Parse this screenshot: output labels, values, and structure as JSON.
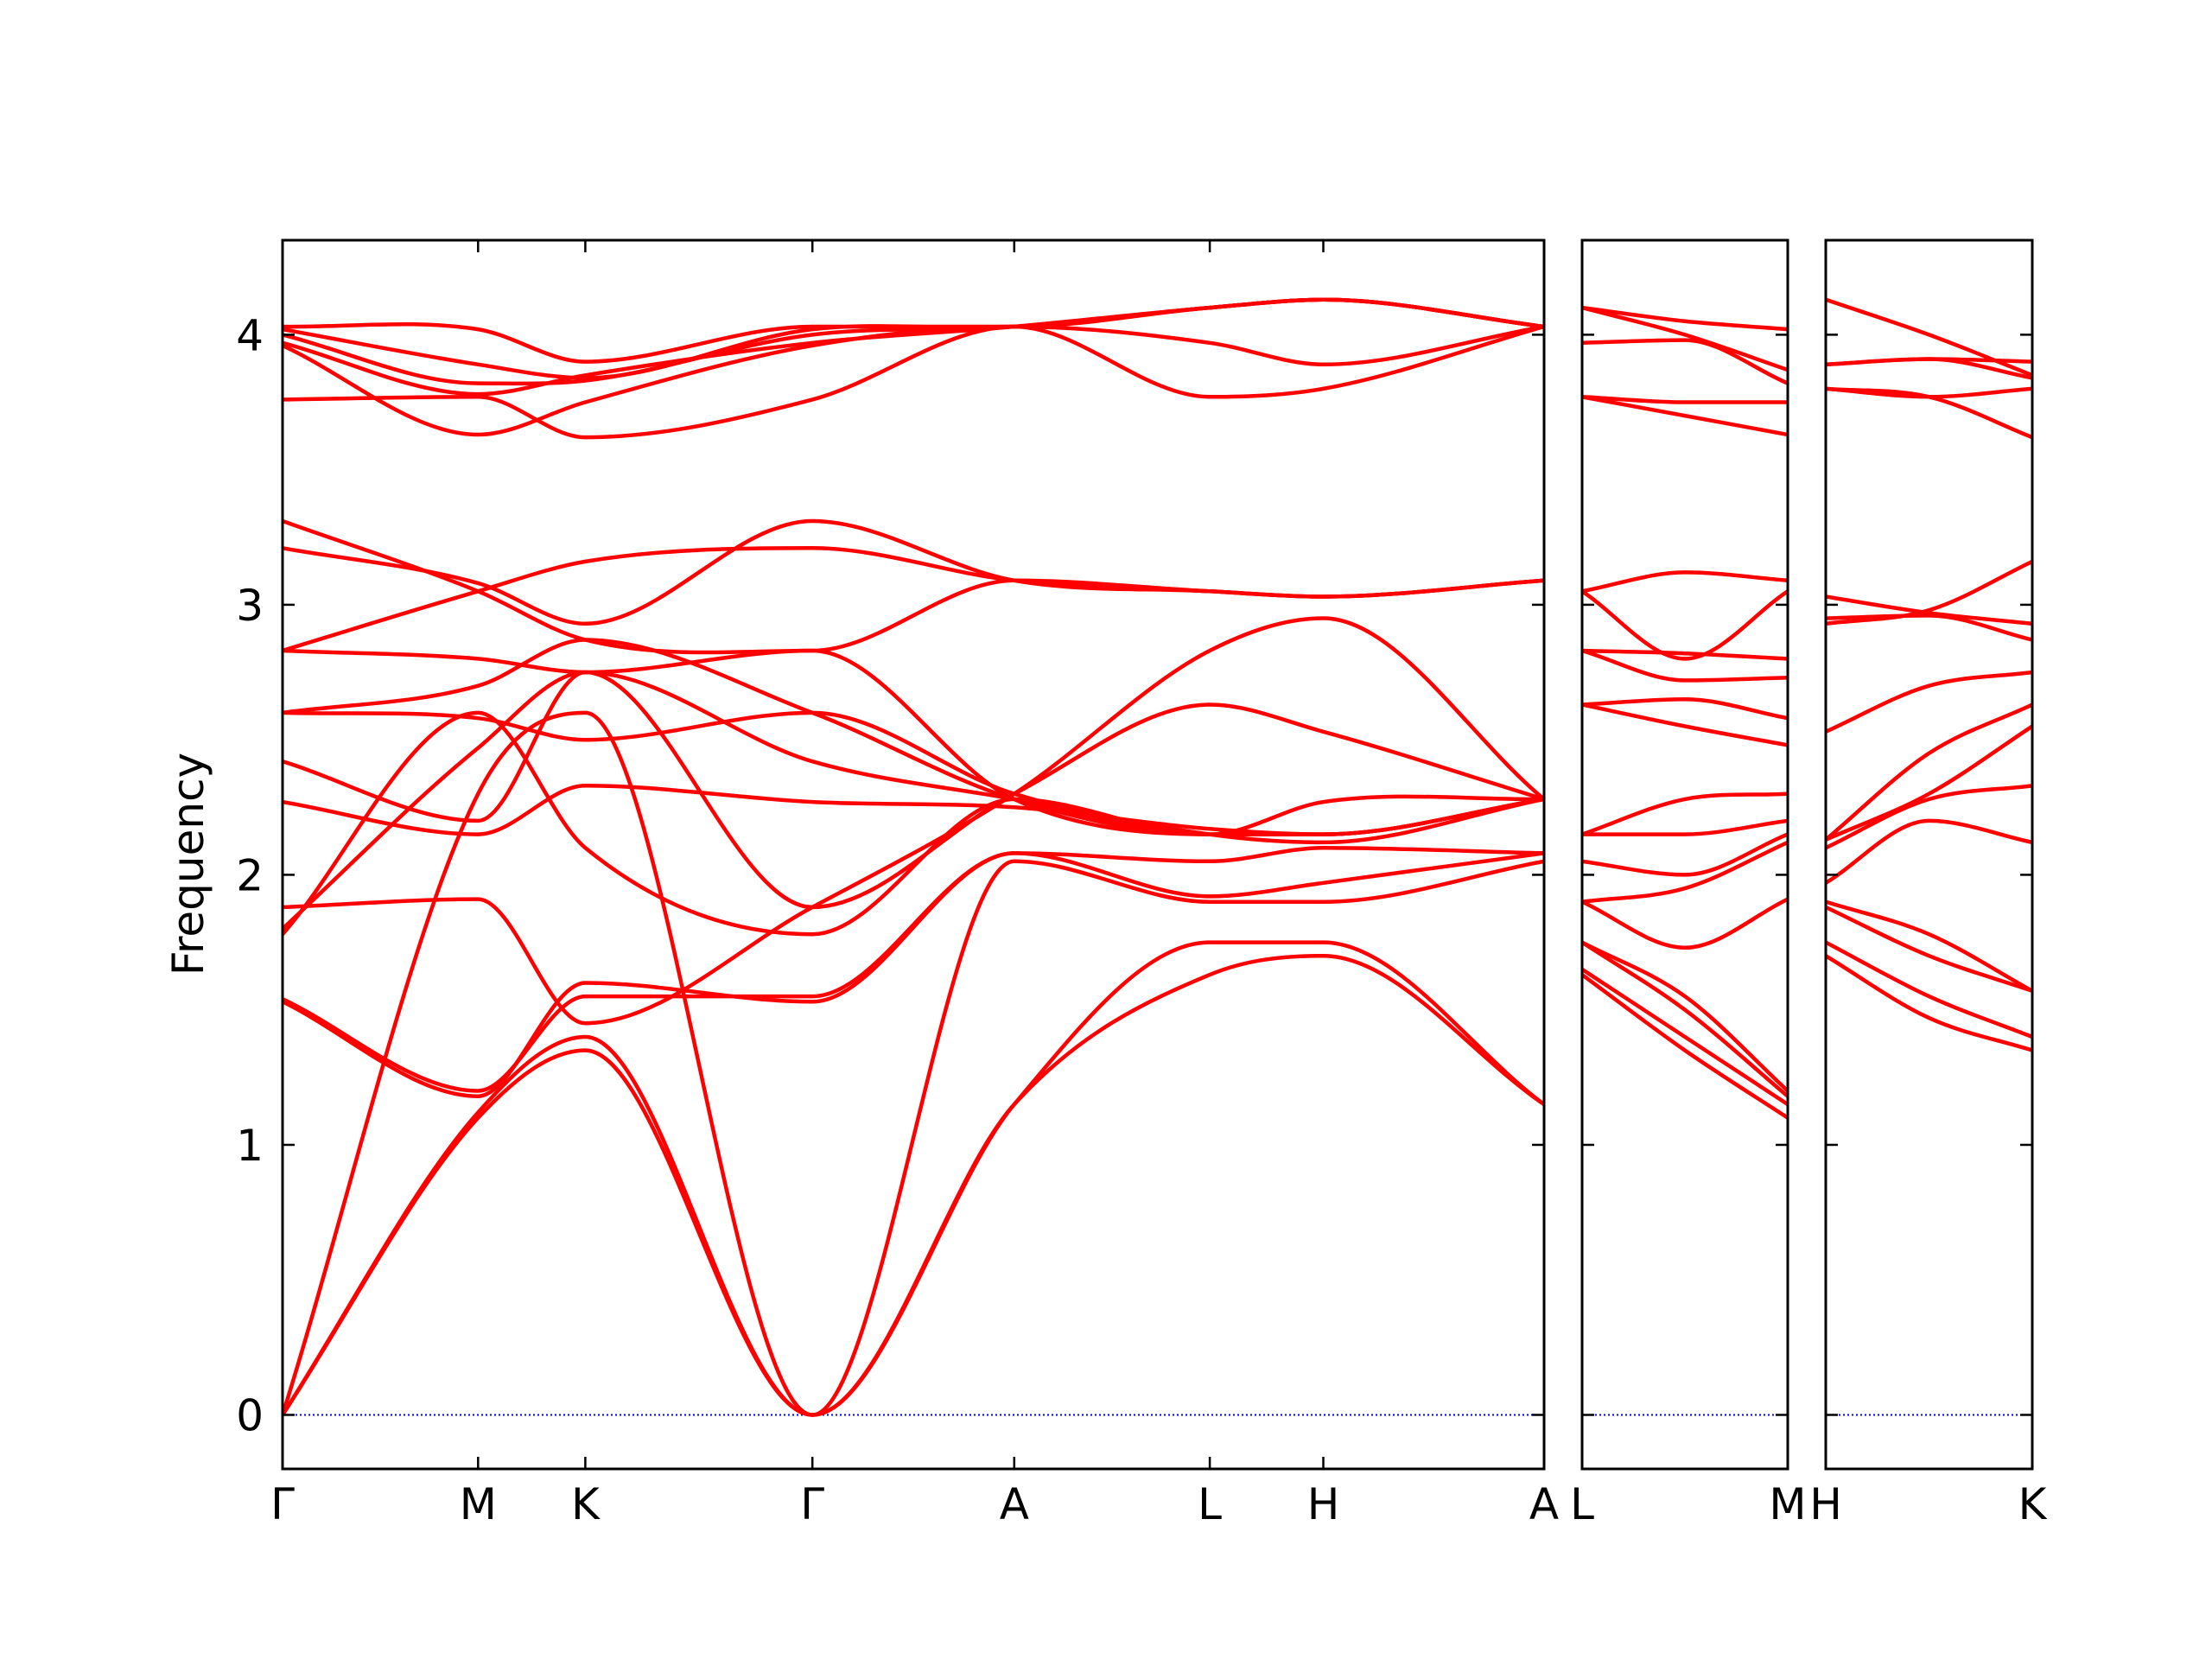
{
  "chart_data": {
    "type": "line",
    "title": "",
    "ylabel": "Frequency",
    "ylim": [
      -0.2,
      4.35
    ],
    "yticks": [
      0,
      1,
      2,
      3,
      4
    ],
    "grid": false,
    "legend": "none",
    "colors": {
      "bands": "#ff0000",
      "zero_line": "#0000ff",
      "frame": "#000000"
    },
    "panels": [
      {
        "name": "Γ-M-K-Γ-A-L-H-A",
        "xlim": [
          0,
          1
        ],
        "ticks": [
          {
            "label": "Γ",
            "x": 0.0
          },
          {
            "label": "M",
            "x": 0.155
          },
          {
            "label": "K",
            "x": 0.24
          },
          {
            "label": "Γ",
            "x": 0.42
          },
          {
            "label": "A",
            "x": 0.58
          },
          {
            "label": "L",
            "x": 0.735
          },
          {
            "label": "H",
            "x": 0.825
          },
          {
            "label": "A",
            "x": 1.0
          }
        ],
        "series": [
          {
            "x": [
              0,
              0.155,
              0.24,
              0.42,
              0.58,
              0.735,
              0.825,
              1.0
            ],
            "values": [
              0,
              1.1,
              1.35,
              0,
              1.15,
              1.63,
              1.7,
              1.15
            ]
          },
          {
            "x": [
              0,
              0.155,
              0.24,
              0.42,
              0.58,
              0.735,
              0.825,
              1.0
            ],
            "values": [
              0,
              1.12,
              1.4,
              0,
              1.15,
              1.75,
              1.75,
              1.15
            ]
          },
          {
            "x": [
              0,
              0.155,
              0.24,
              0.42,
              0.58,
              0.735,
              0.825,
              1.0
            ],
            "values": [
              0,
              2.3,
              2.6,
              0,
              2.05,
              1.9,
              1.9,
              2.05
            ]
          },
          {
            "x": [
              0,
              0.155,
              0.24,
              0.42,
              0.58,
              0.735,
              0.825,
              1.0
            ],
            "values": [
              1.53,
              1.18,
              1.6,
              1.53,
              2.08,
              1.92,
              1.97,
              2.08
            ]
          },
          {
            "x": [
              0,
              0.155,
              0.24,
              0.42,
              0.58,
              0.735,
              0.825,
              1.0
            ],
            "values": [
              1.54,
              1.2,
              1.55,
              1.55,
              2.08,
              2.05,
              2.1,
              2.08
            ]
          },
          {
            "x": [
              0,
              0.155,
              0.24,
              0.42,
              0.58,
              0.735,
              0.825,
              1.0
            ],
            "values": [
              1.78,
              2.6,
              2.1,
              1.78,
              2.28,
              2.15,
              2.27,
              2.28
            ]
          },
          {
            "x": [
              0,
              0.155,
              0.24,
              0.42,
              0.58,
              0.735,
              0.825,
              1.0
            ],
            "values": [
              1.8,
              2.47,
              2.75,
              1.88,
              2.3,
              2.63,
              2.53,
              2.28
            ]
          },
          {
            "x": [
              0,
              0.155,
              0.24,
              0.42,
              0.58,
              0.735,
              0.825,
              1.0
            ],
            "values": [
              1.88,
              1.91,
              1.45,
              1.88,
              2.3,
              2.83,
              2.95,
              2.28
            ]
          },
          {
            "x": [
              0,
              0.155,
              0.24,
              0.42,
              0.58,
              0.735,
              0.825,
              1.0
            ],
            "values": [
              2.27,
              2.15,
              2.33,
              2.27,
              2.25,
              2.17,
              2.15,
              2.28
            ]
          },
          {
            "x": [
              0,
              0.155,
              0.24,
              0.42,
              0.58,
              0.735,
              0.825,
              1.0
            ],
            "values": [
              2.42,
              2.2,
              2.75,
              2.42,
              2.28,
              2.15,
              2.15,
              2.28
            ]
          },
          {
            "x": [
              0,
              0.155,
              0.24,
              0.42,
              0.58,
              0.735,
              0.825,
              1.0
            ],
            "values": [
              2.6,
              2.58,
              2.5,
              2.6,
              2.3,
              2.15,
              2.12,
              2.28
            ]
          },
          {
            "x": [
              0,
              0.155,
              0.24,
              0.42,
              0.58,
              0.735,
              0.825,
              1.0
            ],
            "values": [
              2.6,
              2.7,
              2.87,
              2.6,
              2.28,
              2.15,
              2.15,
              2.28
            ]
          },
          {
            "x": [
              0,
              0.155,
              0.24,
              0.42,
              0.58,
              0.735,
              0.825,
              1.0
            ],
            "values": [
              2.83,
              2.8,
              2.75,
              2.83,
              2.28,
              2.15,
              2.15,
              2.28
            ]
          },
          {
            "x": [
              0,
              0.155,
              0.24,
              0.42,
              0.58,
              0.735,
              0.825,
              1.0
            ],
            "values": [
              2.83,
              3.05,
              3.16,
              3.21,
              3.09,
              3.05,
              3.03,
              3.09
            ]
          },
          {
            "x": [
              0,
              0.155,
              0.24,
              0.42,
              0.58,
              0.735,
              0.825,
              1.0
            ],
            "values": [
              3.21,
              3.08,
              2.93,
              3.31,
              3.09,
              3.05,
              3.03,
              3.09
            ]
          },
          {
            "x": [
              0,
              0.155,
              0.24,
              0.42,
              0.58,
              0.735,
              0.825,
              1.0
            ],
            "values": [
              3.31,
              3.05,
              2.87,
              2.83,
              3.09,
              3.05,
              3.03,
              3.09
            ]
          },
          {
            "x": [
              0,
              0.155,
              0.24,
              0.42,
              0.58,
              0.735,
              0.825,
              1.0
            ],
            "values": [
              3.76,
              3.77,
              3.62,
              3.76,
              4.03,
              3.77,
              3.8,
              4.03
            ]
          },
          {
            "x": [
              0,
              0.155,
              0.24,
              0.42,
              0.58,
              0.735,
              0.825,
              1.0
            ],
            "values": [
              3.96,
              3.63,
              3.75,
              3.96,
              4.03,
              3.97,
              3.89,
              4.03
            ]
          },
          {
            "x": [
              0,
              0.155,
              0.24,
              0.42,
              0.58,
              0.735,
              0.825,
              1.0
            ],
            "values": [
              3.97,
              3.78,
              3.85,
              3.97,
              4.03,
              4.1,
              4.13,
              4.03
            ]
          },
          {
            "x": [
              0,
              0.155,
              0.24,
              0.42,
              0.58,
              0.735,
              0.825,
              1.0
            ],
            "values": [
              4.0,
              3.82,
              3.83,
              4.0,
              4.03,
              4.1,
              4.13,
              4.03
            ]
          },
          {
            "x": [
              0,
              0.155,
              0.24,
              0.42,
              0.58,
              0.735,
              0.825,
              1.0
            ],
            "values": [
              4.02,
              3.89,
              3.84,
              4.02,
              4.03,
              4.1,
              4.13,
              4.03
            ]
          },
          {
            "x": [
              0,
              0.155,
              0.24,
              0.42,
              0.58,
              0.735,
              0.825,
              1.0
            ],
            "values": [
              4.03,
              4.02,
              3.9,
              4.03,
              4.03,
              4.1,
              4.13,
              4.03
            ]
          }
        ]
      },
      {
        "name": "L-M",
        "xlim": [
          0,
          1
        ],
        "ticks": [
          {
            "label": "L",
            "x": 0.0
          },
          {
            "label": "M",
            "x": 1.0
          }
        ],
        "series": [
          {
            "x": [
              0,
              0.5,
              1
            ],
            "values": [
              1.63,
              1.35,
              1.1
            ]
          },
          {
            "x": [
              0,
              0.5,
              1
            ],
            "values": [
              1.65,
              1.4,
              1.15
            ]
          },
          {
            "x": [
              0,
              0.5,
              1
            ],
            "values": [
              1.75,
              1.5,
              1.18
            ]
          },
          {
            "x": [
              0,
              0.5,
              1
            ],
            "values": [
              1.75,
              1.55,
              1.2
            ]
          },
          {
            "x": [
              0,
              0.5,
              1
            ],
            "values": [
              1.9,
              1.73,
              1.91
            ]
          },
          {
            "x": [
              0,
              0.5,
              1
            ],
            "values": [
              1.9,
              1.95,
              2.12
            ]
          },
          {
            "x": [
              0,
              0.5,
              1
            ],
            "values": [
              2.05,
              2.0,
              2.15
            ]
          },
          {
            "x": [
              0,
              0.5,
              1
            ],
            "values": [
              2.15,
              2.15,
              2.2
            ]
          },
          {
            "x": [
              0,
              0.5,
              1
            ],
            "values": [
              2.15,
              2.28,
              2.3
            ]
          },
          {
            "x": [
              0,
              0.5,
              1
            ],
            "values": [
              2.63,
              2.55,
              2.48
            ]
          },
          {
            "x": [
              0,
              0.5,
              1
            ],
            "values": [
              2.63,
              2.65,
              2.58
            ]
          },
          {
            "x": [
              0,
              0.5,
              1
            ],
            "values": [
              2.83,
              2.72,
              2.73
            ]
          },
          {
            "x": [
              0,
              0.5,
              1
            ],
            "values": [
              2.83,
              2.82,
              2.8
            ]
          },
          {
            "x": [
              0,
              0.5,
              1
            ],
            "values": [
              3.05,
              3.12,
              3.09
            ]
          },
          {
            "x": [
              0,
              0.5,
              1
            ],
            "values": [
              3.05,
              2.8,
              3.05
            ]
          },
          {
            "x": [
              0,
              0.5,
              1
            ],
            "values": [
              3.77,
              3.7,
              3.63
            ]
          },
          {
            "x": [
              0,
              0.5,
              1
            ],
            "values": [
              3.77,
              3.75,
              3.75
            ]
          },
          {
            "x": [
              0,
              0.5,
              1
            ],
            "values": [
              3.97,
              3.98,
              3.82
            ]
          },
          {
            "x": [
              0,
              0.5,
              1
            ],
            "values": [
              4.1,
              4.0,
              3.87
            ]
          },
          {
            "x": [
              0,
              0.5,
              1
            ],
            "values": [
              4.1,
              4.05,
              4.02
            ]
          }
        ]
      },
      {
        "name": "H-K",
        "xlim": [
          0,
          1
        ],
        "ticks": [
          {
            "label": "H",
            "x": 0.0
          },
          {
            "label": "K",
            "x": 1.0
          }
        ],
        "series": [
          {
            "x": [
              0,
              0.5,
              1
            ],
            "values": [
              1.7,
              1.47,
              1.35
            ]
          },
          {
            "x": [
              0,
              0.5,
              1
            ],
            "values": [
              1.75,
              1.55,
              1.4
            ]
          },
          {
            "x": [
              0,
              0.5,
              1
            ],
            "values": [
              1.88,
              1.7,
              1.57
            ]
          },
          {
            "x": [
              0,
              0.5,
              1
            ],
            "values": [
              1.9,
              1.78,
              1.57
            ]
          },
          {
            "x": [
              0,
              0.5,
              1
            ],
            "values": [
              1.97,
              2.2,
              2.12
            ]
          },
          {
            "x": [
              0,
              0.5,
              1
            ],
            "values": [
              2.1,
              2.28,
              2.33
            ]
          },
          {
            "x": [
              0,
              0.5,
              1
            ],
            "values": [
              2.13,
              2.3,
              2.55
            ]
          },
          {
            "x": [
              0,
              0.5,
              1
            ],
            "values": [
              2.13,
              2.45,
              2.63
            ]
          },
          {
            "x": [
              0,
              0.5,
              1
            ],
            "values": [
              2.53,
              2.7,
              2.75
            ]
          },
          {
            "x": [
              0,
              0.5,
              1
            ],
            "values": [
              2.93,
              2.98,
              3.16
            ]
          },
          {
            "x": [
              0,
              0.5,
              1
            ],
            "values": [
              2.95,
              2.96,
              2.87
            ]
          },
          {
            "x": [
              0,
              0.5,
              1
            ],
            "values": [
              3.03,
              2.97,
              2.93
            ]
          },
          {
            "x": [
              0,
              0.5,
              1
            ],
            "values": [
              3.8,
              3.77,
              3.62
            ]
          },
          {
            "x": [
              0,
              0.5,
              1
            ],
            "values": [
              3.8,
              3.77,
              3.8
            ]
          },
          {
            "x": [
              0,
              0.5,
              1
            ],
            "values": [
              3.89,
              3.91,
              3.84
            ]
          },
          {
            "x": [
              0,
              0.5,
              1
            ],
            "values": [
              3.89,
              3.91,
              3.9
            ]
          },
          {
            "x": [
              0,
              0.5,
              1
            ],
            "values": [
              4.13,
              4.0,
              3.85
            ]
          }
        ]
      }
    ]
  }
}
